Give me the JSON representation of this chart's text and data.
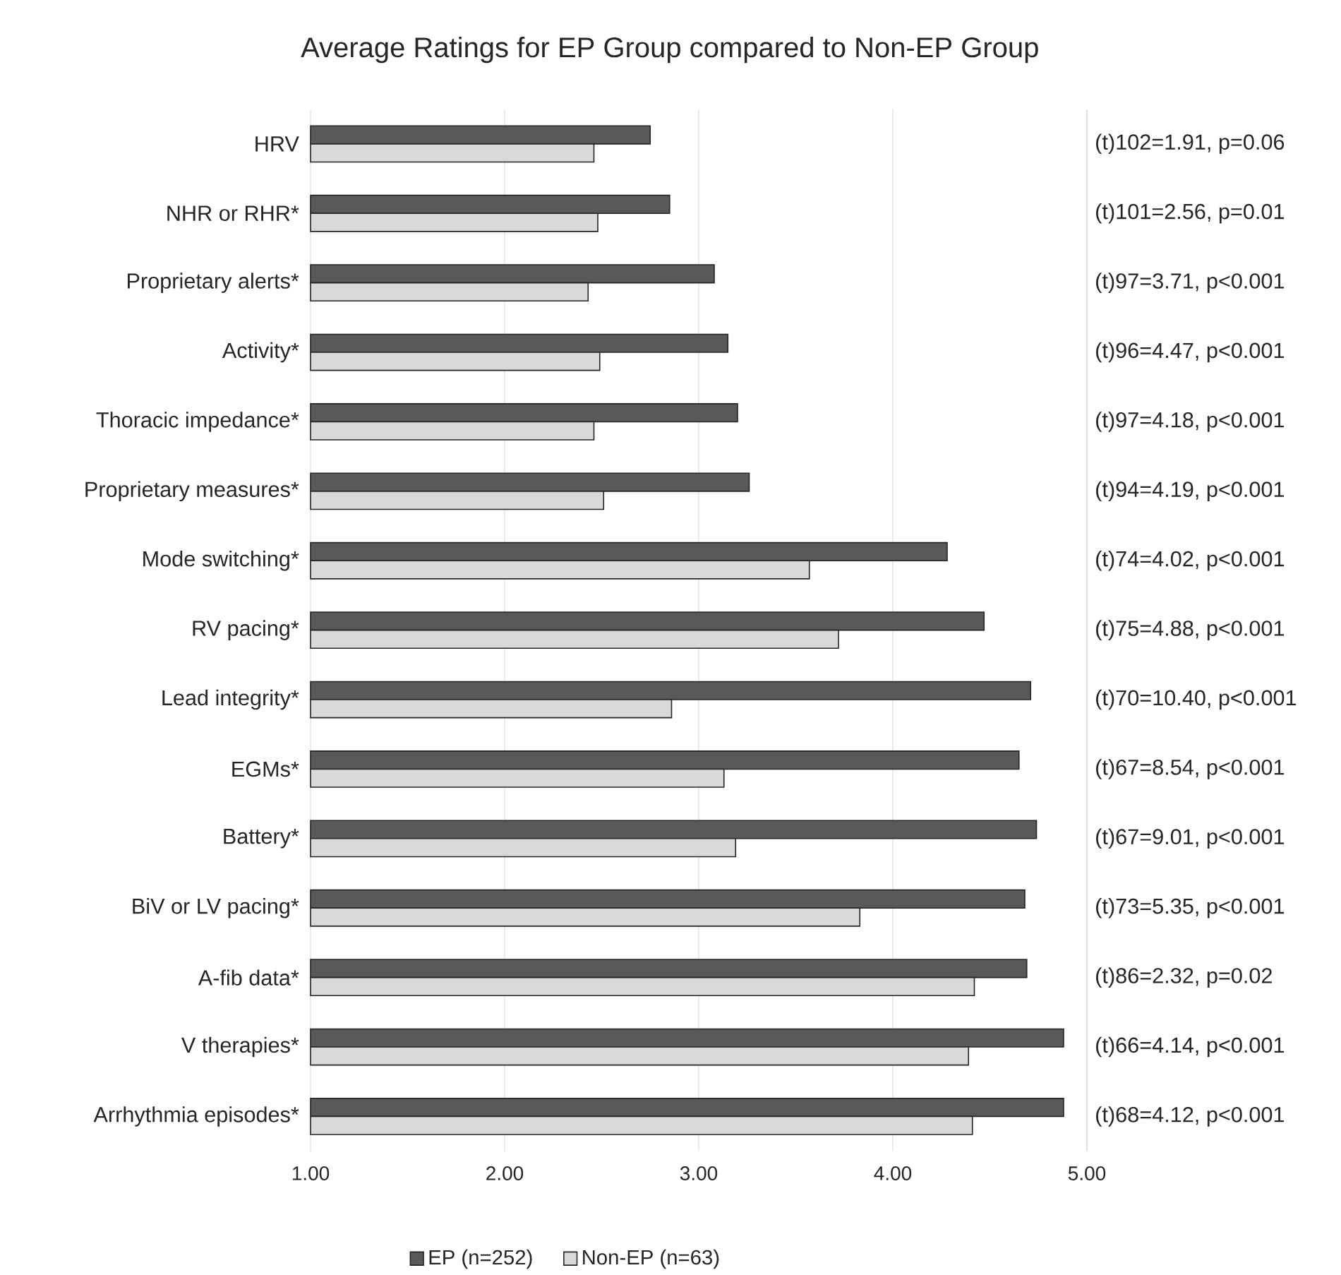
{
  "chart_data": {
    "type": "bar",
    "orientation": "horizontal",
    "title": "Average Ratings for EP Group compared to Non-EP Group",
    "categories": [
      "HRV",
      "NHR or RHR*",
      "Proprietary alerts*",
      "Activity*",
      "Thoracic impedance*",
      "Proprietary measures*",
      "Mode switching*",
      "RV pacing*",
      "Lead integrity*",
      "EGMs*",
      "Battery*",
      "BiV or LV pacing*",
      "A-fib data*",
      "V therapies*",
      "Arrhythmia episodes*"
    ],
    "series": [
      {
        "name": "EP (n=252)",
        "color": "#595959",
        "values": [
          2.75,
          2.85,
          3.08,
          3.15,
          3.2,
          3.26,
          4.28,
          4.47,
          4.71,
          4.65,
          4.74,
          4.68,
          4.69,
          4.88,
          4.88
        ]
      },
      {
        "name": "Non-EP (n=63)",
        "color": "#d9d9d9",
        "values": [
          2.46,
          2.48,
          2.43,
          2.49,
          2.46,
          2.51,
          3.57,
          3.72,
          2.86,
          3.13,
          3.19,
          3.83,
          4.42,
          4.39,
          4.41
        ]
      }
    ],
    "xlim": [
      1,
      5
    ],
    "xticks": [
      {
        "value": 1,
        "label": "1.00"
      },
      {
        "value": 2,
        "label": "2.00"
      },
      {
        "value": 3,
        "label": "3.00"
      },
      {
        "value": 4,
        "label": "4.00"
      },
      {
        "value": 5,
        "label": "5.00"
      }
    ],
    "grid": "x",
    "legend": "bottom",
    "annotations": [
      "(t)102=1.91, p=0.06",
      "(t)101=2.56, p=0.01",
      "(t)97=3.71, p<0.001",
      "(t)96=4.47, p<0.001",
      "(t)97=4.18, p<0.001",
      "(t)94=4.19, p<0.001",
      "(t)74=4.02, p<0.001",
      "(t)75=4.88, p<0.001",
      "(t)70=10.40, p<0.001",
      "(t)67=8.54, p<0.001",
      "(t)67=9.01, p<0.001",
      "(t)73=5.35, p<0.001",
      "(t)86=2.32, p=0.02",
      "(t)66=4.14, p<0.001",
      "(t)68=4.12, p<0.001"
    ]
  }
}
